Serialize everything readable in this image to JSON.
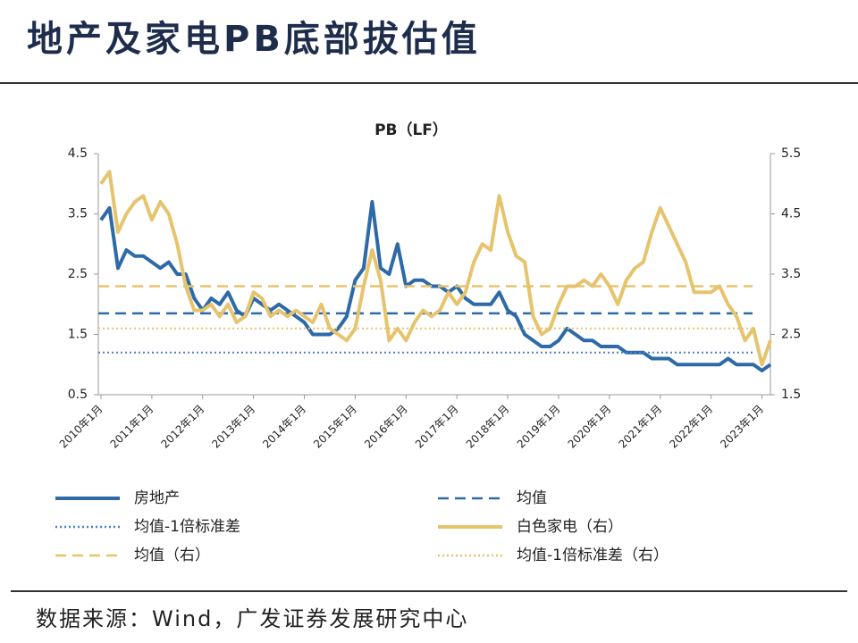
{
  "title": "地产及家电PB底部拔估值",
  "source": "数据来源：Wind，广发证券发展研究中心",
  "chart_data": {
    "type": "line",
    "title": "PB（LF）",
    "categories": [
      "2010年1月",
      null,
      null,
      null,
      null,
      null,
      "2011年1月",
      null,
      null,
      null,
      null,
      null,
      "2012年1月",
      null,
      null,
      null,
      null,
      null,
      "2013年1月",
      null,
      null,
      null,
      null,
      null,
      "2014年1月",
      null,
      null,
      null,
      null,
      null,
      "2015年1月",
      null,
      null,
      null,
      null,
      null,
      "2016年1月",
      null,
      null,
      null,
      null,
      null,
      "2017年1月",
      null,
      null,
      null,
      null,
      null,
      "2018年1月",
      null,
      null,
      null,
      null,
      null,
      "2019年1月",
      null,
      null,
      null,
      null,
      null,
      "2020年1月",
      null,
      null,
      null,
      null,
      null,
      "2021年1月",
      null,
      null,
      null,
      null,
      null,
      "2022年1月",
      null,
      null,
      null,
      null,
      null,
      "2023年1月",
      null
    ],
    "ylim": [
      0.5,
      4.5
    ],
    "yticks": [
      0.5,
      1.5,
      2.5,
      3.5,
      4.5
    ],
    "y2lim": [
      1.5,
      5.5
    ],
    "y2ticks": [
      1.5,
      2.5,
      3.5,
      4.5,
      5.5
    ],
    "series": [
      {
        "name": "房地产",
        "color": "#2e6aa8",
        "style": "solid",
        "values": [
          3.4,
          3.6,
          2.6,
          2.9,
          2.8,
          2.8,
          2.7,
          2.6,
          2.7,
          2.5,
          2.5,
          2.1,
          1.9,
          2.1,
          2.0,
          2.2,
          1.9,
          1.8,
          2.1,
          2.0,
          1.9,
          2.0,
          1.9,
          1.8,
          1.7,
          1.5,
          1.5,
          1.5,
          1.6,
          1.8,
          2.4,
          2.6,
          3.7,
          2.6,
          2.5,
          3.0,
          2.3,
          2.4,
          2.4,
          2.3,
          2.3,
          2.2,
          2.3,
          2.1,
          2.0,
          2.0,
          2.0,
          2.2,
          1.9,
          1.8,
          1.5,
          1.4,
          1.3,
          1.3,
          1.4,
          1.6,
          1.5,
          1.4,
          1.4,
          1.3,
          1.3,
          1.3,
          1.2,
          1.2,
          1.2,
          1.1,
          1.1,
          1.1,
          1.0,
          1.0,
          1.0,
          1.0,
          1.0,
          1.0,
          1.1,
          1.0,
          1.0,
          1.0,
          0.9,
          1.0
        ]
      },
      {
        "name": "均值",
        "color": "#2e6aa8",
        "style": "dashed",
        "value": 1.85
      },
      {
        "name": "均值-1倍标准差",
        "color": "#4a7fd0",
        "style": "dotted",
        "value": 1.2
      },
      {
        "name": "白色家电（右）",
        "color": "#e6c46e",
        "style": "solid",
        "axis": "y2",
        "values": [
          5.0,
          5.2,
          4.2,
          4.5,
          4.7,
          4.8,
          4.4,
          4.7,
          4.5,
          4.0,
          3.3,
          2.9,
          2.9,
          3.0,
          2.8,
          3.0,
          2.7,
          2.8,
          3.2,
          3.1,
          2.8,
          2.9,
          2.8,
          2.9,
          2.8,
          2.7,
          3.0,
          2.6,
          2.5,
          2.4,
          2.6,
          3.3,
          3.9,
          3.4,
          2.4,
          2.6,
          2.4,
          2.7,
          2.9,
          2.8,
          2.9,
          3.2,
          3.0,
          3.2,
          3.7,
          4.0,
          3.9,
          4.8,
          4.2,
          3.8,
          3.7,
          2.8,
          2.5,
          2.6,
          3.0,
          3.3,
          3.3,
          3.4,
          3.3,
          3.5,
          3.3,
          3.0,
          3.4,
          3.6,
          3.7,
          4.2,
          4.6,
          4.3,
          4.0,
          3.7,
          3.2,
          3.2,
          3.2,
          3.3,
          3.0,
          2.8,
          2.4,
          2.6,
          2.0,
          2.4
        ]
      },
      {
        "name": "均值（右）",
        "color": "#e6c46e",
        "style": "dashed",
        "axis": "y2",
        "value": 3.3
      },
      {
        "name": "均值-1倍标准差（右）",
        "color": "#e6c46e",
        "style": "dotted",
        "axis": "y2",
        "value": 2.6
      }
    ]
  }
}
